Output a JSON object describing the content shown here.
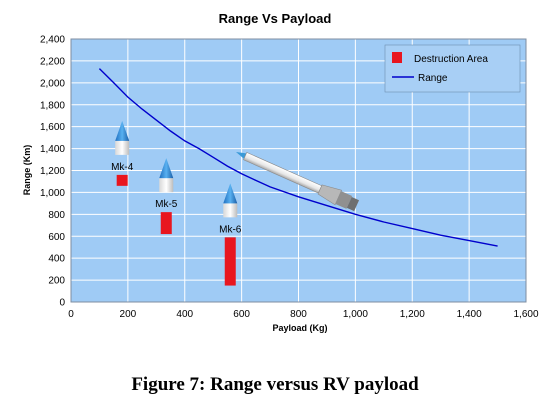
{
  "chart_data": {
    "type": "line",
    "title": "Range Vs Payload",
    "xlabel": "Payload (Kg)",
    "ylabel": "Range (Km)",
    "xlim": [
      0,
      1600
    ],
    "ylim": [
      0,
      2400
    ],
    "x_ticks": [
      0,
      200,
      400,
      600,
      800,
      1000,
      1200,
      1400,
      1600
    ],
    "y_ticks": [
      0,
      200,
      400,
      600,
      800,
      1000,
      1200,
      1400,
      1600,
      1800,
      2000,
      2200,
      2400
    ],
    "x_tick_labels": [
      "0",
      "200",
      "400",
      "600",
      "800",
      "1,000",
      "1,200",
      "1,400",
      "1,600"
    ],
    "y_tick_labels": [
      "0",
      "200",
      "400",
      "600",
      "800",
      "1,000",
      "1,200",
      "1,400",
      "1,600",
      "1,800",
      "2,000",
      "2,200",
      "2,400"
    ],
    "grid": true,
    "legend_position": "top-right",
    "series": [
      {
        "name": "Range",
        "color": "#0000cc",
        "x": [
          100,
          150,
          200,
          250,
          300,
          350,
          400,
          450,
          500,
          550,
          600,
          650,
          700,
          800,
          900,
          1000,
          1100,
          1200,
          1300,
          1400,
          1500
        ],
        "y": [
          2130,
          2000,
          1870,
          1760,
          1660,
          1560,
          1470,
          1400,
          1320,
          1240,
          1170,
          1110,
          1050,
          960,
          880,
          800,
          730,
          670,
          610,
          560,
          510
        ]
      }
    ],
    "destruction_area": {
      "name": "Destruction Area",
      "color": "#e8161f",
      "items": [
        {
          "label": "Mk-4",
          "x": 180,
          "y_low": 1060,
          "y_high": 1160
        },
        {
          "label": "Mk-5",
          "x": 335,
          "y_low": 620,
          "y_high": 820
        },
        {
          "label": "Mk-6",
          "x": 560,
          "y_low": 150,
          "y_high": 590
        }
      ]
    }
  },
  "caption": "Figure 7: Range versus RV payload"
}
